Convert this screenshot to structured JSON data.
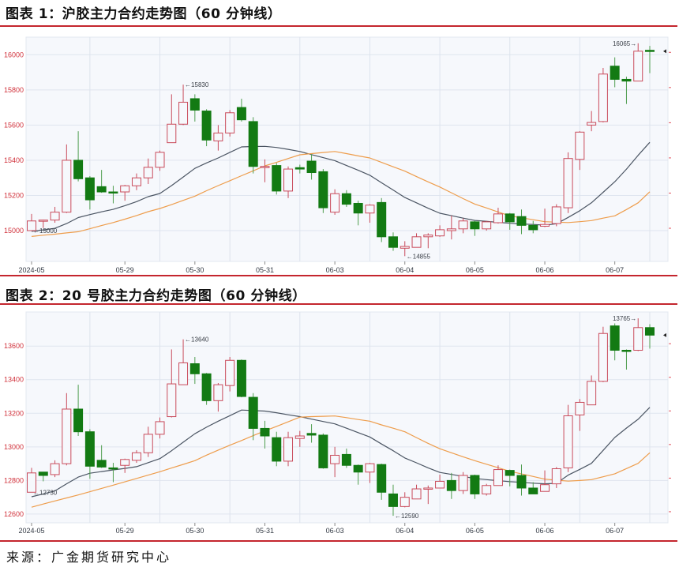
{
  "page": {
    "source": "来源：广金期货研究中心"
  },
  "colors": {
    "up_candle": "#c94b5b",
    "down_candle": "#137a13",
    "down_wick": "#4f9e4f",
    "ma_dark": "#4b5563",
    "ma_orange": "#ee9d4c",
    "y_axis_text": "#d0303a",
    "rule": "#c4262e",
    "plot_bg": "#f6f8fc",
    "grid": "#dfe5ef"
  },
  "chart_data": [
    {
      "type": "candlestick",
      "title": "图表 1：沪胶主力合约走势图（60 分钟线）",
      "xlabel": "",
      "ylabel": "",
      "ylim": [
        14825,
        16100
      ],
      "y_ticks": [
        15000,
        15200,
        15400,
        15600,
        15800,
        16000
      ],
      "grid": true,
      "categories": [
        "2024-05",
        "05-29",
        "05-30",
        "05-31",
        "06-03",
        "06-04",
        "06-05",
        "06-06",
        "06-07"
      ],
      "x_tick_indices": [
        0,
        8,
        14,
        20,
        26,
        32,
        38,
        44,
        50
      ],
      "day_boundary_indices": [
        5,
        11,
        17,
        23,
        29,
        35,
        41,
        47,
        53
      ],
      "candles_format": [
        "open",
        "high",
        "low",
        "close"
      ],
      "candles": [
        [
          15000,
          15095,
          15000,
          15055
        ],
        [
          15055,
          15062,
          15015,
          15060
        ],
        [
          15060,
          15135,
          15045,
          15105
        ],
        [
          15105,
          15490,
          15100,
          15400
        ],
        [
          15400,
          15565,
          15280,
          15295
        ],
        [
          15300,
          15310,
          15120,
          15175
        ],
        [
          15250,
          15345,
          15215,
          15220
        ],
        [
          15220,
          15255,
          15155,
          15215
        ],
        [
          15220,
          15260,
          15170,
          15255
        ],
        [
          15255,
          15325,
          15230,
          15300
        ],
        [
          15300,
          15410,
          15265,
          15360
        ],
        [
          15360,
          15455,
          15340,
          15445
        ],
        [
          15500,
          15775,
          15500,
          15605
        ],
        [
          15605,
          15830,
          15600,
          15730
        ],
        [
          15750,
          15775,
          15620,
          15685
        ],
        [
          15680,
          15690,
          15480,
          15515
        ],
        [
          15510,
          15600,
          15455,
          15555
        ],
        [
          15555,
          15685,
          15535,
          15670
        ],
        [
          15700,
          15750,
          15620,
          15630
        ],
        [
          15620,
          15645,
          15325,
          15365
        ],
        [
          15360,
          15405,
          15275,
          15365
        ],
        [
          15370,
          15385,
          15205,
          15225
        ],
        [
          15225,
          15365,
          15185,
          15350
        ],
        [
          15358,
          15375,
          15325,
          15350
        ],
        [
          15395,
          15435,
          15290,
          15330
        ],
        [
          15335,
          15350,
          15100,
          15130
        ],
        [
          15105,
          15235,
          15090,
          15210
        ],
        [
          15210,
          15230,
          15135,
          15150
        ],
        [
          15155,
          15170,
          15030,
          15100
        ],
        [
          15100,
          15150,
          15045,
          15145
        ],
        [
          15160,
          15185,
          14935,
          14965
        ],
        [
          14965,
          14990,
          14885,
          14905
        ],
        [
          14900,
          14940,
          14855,
          14910
        ],
        [
          14905,
          14985,
          14905,
          14965
        ],
        [
          14965,
          14985,
          14900,
          14975
        ],
        [
          14970,
          15030,
          14965,
          15005
        ],
        [
          15000,
          15085,
          14950,
          15010
        ],
        [
          15010,
          15070,
          14985,
          15055
        ],
        [
          15050,
          15055,
          14970,
          15010
        ],
        [
          15010,
          15055,
          15000,
          15050
        ],
        [
          15045,
          15130,
          15040,
          15095
        ],
        [
          15095,
          15100,
          15005,
          15050
        ],
        [
          15080,
          15120,
          14980,
          15030
        ],
        [
          15030,
          15055,
          14985,
          15005
        ],
        [
          15025,
          15125,
          15020,
          15035
        ],
        [
          15040,
          15150,
          15025,
          15135
        ],
        [
          15130,
          15445,
          15100,
          15410
        ],
        [
          15405,
          15565,
          15345,
          15560
        ],
        [
          15600,
          15680,
          15565,
          15615
        ],
        [
          15620,
          15925,
          15615,
          15890
        ],
        [
          15935,
          15985,
          15815,
          15860
        ],
        [
          15860,
          15875,
          15720,
          15850
        ],
        [
          15850,
          16065,
          15850,
          16020
        ],
        [
          16025,
          16050,
          15895,
          16020
        ]
      ],
      "series": [
        {
          "name": "moving-average-dark",
          "color": "#4b5563",
          "values": [
            14996,
            15004,
            15013,
            15040,
            15074,
            15091,
            15107,
            15121,
            15142,
            15165,
            15193,
            15211,
            15256,
            15305,
            15354,
            15385,
            15413,
            15445,
            15476,
            15478,
            15479,
            15473,
            15462,
            15450,
            15432,
            15415,
            15398,
            15370,
            15343,
            15315,
            15272,
            15231,
            15188,
            15158,
            15127,
            15099,
            15085,
            15071,
            15058,
            15053,
            15047,
            15042,
            15038,
            15035,
            15031,
            15039,
            15075,
            15113,
            15158,
            15218,
            15278,
            15350,
            15428,
            15502
          ]
        },
        {
          "name": "moving-average-orange",
          "color": "#ee9d4c",
          "values": [
            14967,
            14974,
            14980,
            14987,
            14994,
            15011,
            15029,
            15046,
            15065,
            15086,
            15108,
            15126,
            15148,
            15172,
            15196,
            15227,
            15256,
            15284,
            15312,
            15340,
            15368,
            15388,
            15410,
            15431,
            15438,
            15444,
            15450,
            15438,
            15425,
            15413,
            15388,
            15363,
            15338,
            15307,
            15277,
            15248,
            15215,
            15182,
            15151,
            15129,
            15106,
            15084,
            15073,
            15062,
            15051,
            15048,
            15046,
            15051,
            15057,
            15071,
            15084,
            15120,
            15158,
            15221
          ]
        }
      ],
      "annotations": [
        {
          "index": 0,
          "price": 15000,
          "text": "←15000",
          "side": "right"
        },
        {
          "index": 13,
          "price": 15830,
          "text": "←15830",
          "side": "right"
        },
        {
          "index": 32,
          "price": 14855,
          "text": "←14855",
          "side": "right"
        },
        {
          "index": 52,
          "price": 16065,
          "text": "16065→",
          "side": "left"
        }
      ],
      "last_price_marker": {
        "glyph": "◄",
        "price": 16020
      }
    },
    {
      "type": "candlestick",
      "title": "图表 2：20 号胶主力合约走势图（60 分钟线）",
      "xlabel": "",
      "ylabel": "",
      "ylim": [
        12548,
        13803
      ],
      "y_ticks": [
        12600,
        12800,
        13000,
        13200,
        13400,
        13600
      ],
      "grid": true,
      "categories": [
        "2024-05",
        "05-29",
        "05-30",
        "05-31",
        "06-03",
        "06-04",
        "06-05",
        "06-06",
        "06-07"
      ],
      "x_tick_indices": [
        0,
        8,
        14,
        20,
        26,
        32,
        38,
        44,
        50
      ],
      "day_boundary_indices": [
        5,
        11,
        17,
        23,
        29,
        35,
        41,
        47,
        53
      ],
      "candles_format": [
        "open",
        "high",
        "low",
        "close"
      ],
      "candles": [
        [
          12730,
          12875,
          12730,
          12845
        ],
        [
          12850,
          12850,
          12795,
          12830
        ],
        [
          12835,
          12920,
          12820,
          12900
        ],
        [
          12900,
          13320,
          12890,
          13225
        ],
        [
          13225,
          13370,
          13065,
          13090
        ],
        [
          13090,
          13105,
          12810,
          12885
        ],
        [
          12920,
          13010,
          12875,
          12880
        ],
        [
          12875,
          12905,
          12790,
          12870
        ],
        [
          12890,
          12930,
          12845,
          12925
        ],
        [
          12920,
          12980,
          12905,
          12965
        ],
        [
          12965,
          13120,
          12940,
          13075
        ],
        [
          13075,
          13175,
          13050,
          13150
        ],
        [
          13180,
          13580,
          13175,
          13375
        ],
        [
          13370,
          13640,
          13370,
          13500
        ],
        [
          13495,
          13535,
          13375,
          13435
        ],
        [
          13435,
          13440,
          13250,
          13275
        ],
        [
          13275,
          13380,
          13210,
          13370
        ],
        [
          13365,
          13535,
          13330,
          13515
        ],
        [
          13515,
          13520,
          13295,
          13300
        ],
        [
          13295,
          13320,
          13040,
          13110
        ],
        [
          13110,
          13155,
          12990,
          13065
        ],
        [
          13055,
          13090,
          12885,
          12915
        ],
        [
          12915,
          13090,
          12885,
          13055
        ],
        [
          13050,
          13095,
          13000,
          13065
        ],
        [
          13080,
          13135,
          13025,
          13070
        ],
        [
          13070,
          13080,
          12870,
          12875
        ],
        [
          12900,
          13000,
          12820,
          12950
        ],
        [
          12955,
          12990,
          12875,
          12890
        ],
        [
          12890,
          12895,
          12775,
          12850
        ],
        [
          12850,
          12905,
          12785,
          12900
        ],
        [
          12895,
          12900,
          12685,
          12730
        ],
        [
          12720,
          12775,
          12590,
          12645
        ],
        [
          12645,
          12730,
          12640,
          12700
        ],
        [
          12690,
          12775,
          12690,
          12750
        ],
        [
          12750,
          12770,
          12660,
          12755
        ],
        [
          12755,
          12835,
          12755,
          12795
        ],
        [
          12800,
          12845,
          12690,
          12740
        ],
        [
          12740,
          12850,
          12720,
          12830
        ],
        [
          12830,
          12835,
          12690,
          12720
        ],
        [
          12720,
          12780,
          12710,
          12770
        ],
        [
          12770,
          12890,
          12770,
          12865
        ],
        [
          12860,
          12865,
          12765,
          12830
        ],
        [
          12830,
          12895,
          12710,
          12755
        ],
        [
          12755,
          12790,
          12720,
          12720
        ],
        [
          12735,
          12860,
          12735,
          12775
        ],
        [
          12780,
          12880,
          12755,
          12870
        ],
        [
          12875,
          13250,
          12850,
          13185
        ],
        [
          13190,
          13285,
          13095,
          13265
        ],
        [
          13250,
          13425,
          13250,
          13390
        ],
        [
          13390,
          13715,
          13385,
          13675
        ],
        [
          13720,
          13735,
          13515,
          13575
        ],
        [
          13575,
          13580,
          13460,
          13570
        ],
        [
          13575,
          13765,
          13570,
          13710
        ],
        [
          13710,
          13730,
          13585,
          13665
        ]
      ],
      "series": [
        {
          "name": "moving-average-dark",
          "color": "#4b5563",
          "values": [
            12703,
            12720,
            12738,
            12780,
            12820,
            12843,
            12853,
            12863,
            12872,
            12882,
            12906,
            12930,
            12977,
            13028,
            13078,
            13117,
            13153,
            13186,
            13219,
            13216,
            13213,
            13203,
            13191,
            13180,
            13165,
            13151,
            13137,
            13111,
            13085,
            13059,
            13017,
            12977,
            12934,
            12905,
            12875,
            12848,
            12836,
            12824,
            12812,
            12805,
            12799,
            12793,
            12789,
            12784,
            12780,
            12783,
            12832,
            12866,
            12902,
            12979,
            13056,
            13112,
            13164,
            13235
          ]
        },
        {
          "name": "moving-average-orange",
          "color": "#ee9d4c",
          "values": [
            12641,
            12660,
            12678,
            12696,
            12714,
            12733,
            12753,
            12772,
            12792,
            12812,
            12832,
            12852,
            12874,
            12896,
            12918,
            12951,
            12981,
            13010,
            13038,
            13067,
            13095,
            13122,
            13149,
            13177,
            13180,
            13182,
            13184,
            13174,
            13163,
            13153,
            13131,
            13111,
            13090,
            13055,
            13021,
            12989,
            12965,
            12941,
            12918,
            12897,
            12876,
            12855,
            12839,
            12824,
            12808,
            12802,
            12796,
            12800,
            12805,
            12822,
            12840,
            12871,
            12902,
            12965
          ]
        }
      ],
      "annotations": [
        {
          "index": 0,
          "price": 12730,
          "text": "←12730",
          "side": "right"
        },
        {
          "index": 13,
          "price": 13640,
          "text": "←13640",
          "side": "right"
        },
        {
          "index": 31,
          "price": 12590,
          "text": "←12590",
          "side": "right"
        },
        {
          "index": 52,
          "price": 13765,
          "text": "13765→",
          "side": "left"
        }
      ],
      "last_price_marker": {
        "glyph": "◄",
        "price": 13665
      }
    }
  ]
}
